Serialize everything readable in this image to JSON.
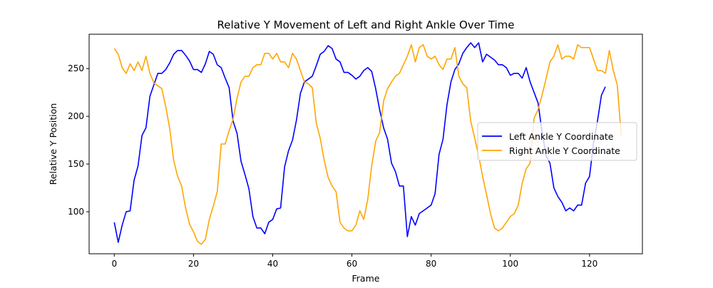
{
  "chart_data": {
    "type": "line",
    "title": "Relative Y Movement of Left and Right Ankle Over Time",
    "xlabel": "Frame",
    "ylabel": "Relative Y Position",
    "xlim": [
      -6.35,
      133.35
    ],
    "ylim": [
      56,
      286
    ],
    "xticks": [
      0,
      20,
      40,
      60,
      80,
      100,
      120
    ],
    "yticks": [
      100,
      150,
      200,
      250
    ],
    "grid": false,
    "legend_position": "center-right",
    "series": [
      {
        "name": "Left Ankle Y Coordinate",
        "color": "#0000ff",
        "values": [
          89,
          68,
          86,
          100,
          101,
          133,
          148,
          180,
          188,
          221,
          233,
          245,
          245,
          249,
          256,
          265,
          269,
          269,
          264,
          258,
          249,
          249,
          246,
          255,
          268,
          265,
          254,
          251,
          240,
          230,
          195,
          182,
          153,
          139,
          124,
          95,
          83,
          83,
          77,
          89,
          92,
          103,
          104,
          147,
          164,
          175,
          196,
          224,
          236,
          239,
          242,
          253,
          265,
          268,
          274,
          271,
          260,
          257,
          246,
          246,
          243,
          239,
          242,
          248,
          251,
          247,
          229,
          207,
          188,
          176,
          151,
          142,
          127,
          127,
          74,
          95,
          86,
          98,
          101,
          104,
          107,
          119,
          160,
          176,
          212,
          236,
          249,
          255,
          266,
          272,
          277,
          272,
          277,
          257,
          265,
          262,
          259,
          254,
          254,
          251,
          243,
          245,
          245,
          240,
          251,
          236,
          225,
          214,
          184,
          159,
          151,
          125,
          116,
          110,
          101,
          104,
          101,
          107,
          107,
          130,
          137,
          172,
          195,
          222,
          231
        ]
      },
      {
        "name": "Right Ankle Y Coordinate",
        "color": "#ffa500",
        "values": [
          271,
          265,
          251,
          245,
          255,
          248,
          257,
          248,
          263,
          245,
          235,
          232,
          229,
          210,
          187,
          154,
          137,
          127,
          104,
          87,
          79,
          69,
          66,
          71,
          92,
          106,
          121,
          171,
          171,
          185,
          197,
          219,
          236,
          242,
          242,
          251,
          254,
          254,
          266,
          266,
          260,
          266,
          257,
          257,
          251,
          266,
          260,
          248,
          236,
          234,
          230,
          193,
          177,
          154,
          136,
          127,
          121,
          89,
          83,
          80,
          80,
          86,
          101,
          92,
          113,
          148,
          174,
          183,
          216,
          229,
          236,
          242,
          245,
          254,
          263,
          275,
          257,
          272,
          275,
          263,
          260,
          263,
          254,
          249,
          260,
          260,
          272,
          242,
          234,
          230,
          195,
          177,
          159,
          137,
          118,
          98,
          83,
          80,
          83,
          89,
          95,
          98,
          107,
          130,
          145,
          151,
          198,
          207,
          222,
          239,
          257,
          263,
          275,
          260,
          263,
          263,
          260,
          275,
          272,
          272,
          272,
          260,
          248,
          248,
          245,
          269,
          248,
          233,
          180
        ]
      }
    ]
  }
}
